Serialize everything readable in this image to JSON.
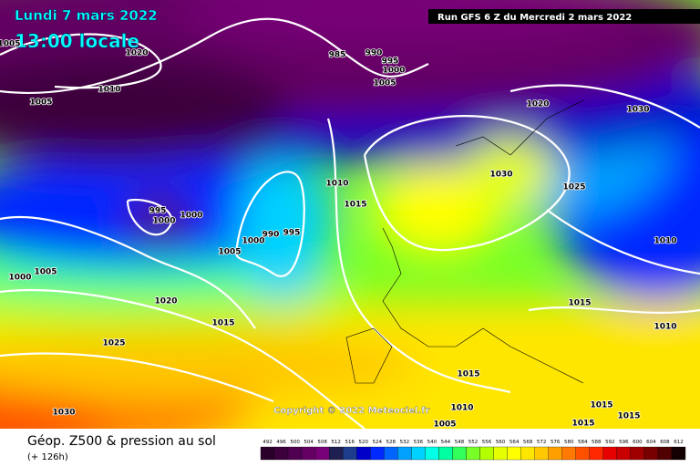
{
  "header": {
    "date": "Lundi 7 mars 2022",
    "time": "13:00 locale",
    "run": "Run GFS 6 Z du Mercredi 2 mars 2022"
  },
  "footer": {
    "title": "Géop. Z500 & pression au sol",
    "lead": "(+ 126h)",
    "copyright": "Copyright © 2022 Meteociel.fr"
  },
  "isobar_labels": [
    "1005",
    "1020",
    "1010",
    "1005",
    "985",
    "990",
    "995",
    "1000",
    "1005",
    "1020",
    "1030",
    "1010",
    "1015",
    "1030",
    "1025",
    "995",
    "1000",
    "1000",
    "1000",
    "990",
    "995",
    "1005",
    "1010",
    "1000",
    "1005",
    "1020",
    "1015",
    "1015",
    "1010",
    "1025",
    "1015",
    "1010",
    "1015",
    "1015",
    "1015",
    "1030",
    "1005"
  ],
  "scale": {
    "labels": [
      492,
      496,
      500,
      504,
      508,
      512,
      516,
      520,
      524,
      528,
      532,
      536,
      540,
      544,
      548,
      552,
      556,
      560,
      564,
      568,
      572,
      576,
      580,
      584,
      588,
      592,
      596,
      600,
      604,
      608,
      612
    ],
    "colors": [
      "#2a002a",
      "#3c003c",
      "#500050",
      "#640064",
      "#780078",
      "#1e1e50",
      "#1e3c8c",
      "#0000c8",
      "#0028ff",
      "#0064ff",
      "#00a0ff",
      "#00d2ff",
      "#00ffe6",
      "#00ffa0",
      "#32ff5a",
      "#78ff28",
      "#b4ff00",
      "#e6ff00",
      "#ffff00",
      "#ffe600",
      "#ffc800",
      "#ffa000",
      "#ff7800",
      "#ff5000",
      "#ff2800",
      "#e60000",
      "#c80000",
      "#a00000",
      "#780000",
      "#500000",
      "#140000"
    ]
  }
}
